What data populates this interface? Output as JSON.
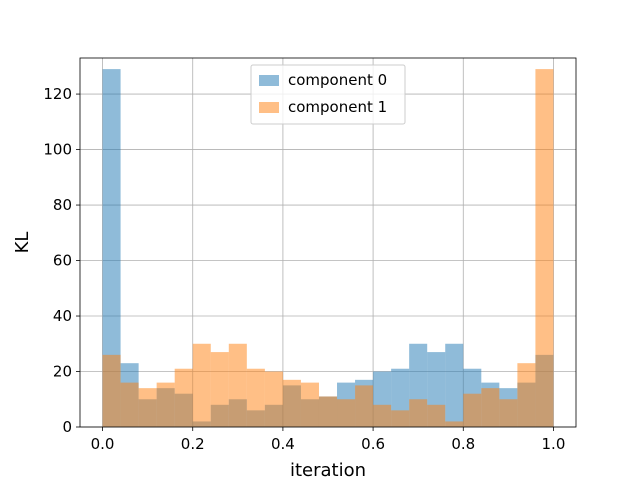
{
  "chart_data": {
    "type": "bar",
    "subtype": "overlaid-histogram",
    "title": "",
    "xlabel": "iteration",
    "ylabel": "KL",
    "xlim": [
      -0.05,
      1.05
    ],
    "ylim": [
      0,
      133
    ],
    "xticks": [
      0.0,
      0.2,
      0.4,
      0.6,
      0.8,
      1.0
    ],
    "xtick_labels": [
      "0.0",
      "0.2",
      "0.4",
      "0.6",
      "0.8",
      "1.0"
    ],
    "yticks": [
      0,
      20,
      40,
      60,
      80,
      100,
      120
    ],
    "ytick_labels": [
      "0",
      "20",
      "40",
      "60",
      "80",
      "100",
      "120"
    ],
    "grid": true,
    "legend_position": "top-center",
    "bin_edges": [
      0.0,
      0.04,
      0.08,
      0.12,
      0.16,
      0.2,
      0.24,
      0.28,
      0.32,
      0.36,
      0.4,
      0.44,
      0.48,
      0.52,
      0.56,
      0.6,
      0.64,
      0.68,
      0.72,
      0.76,
      0.8,
      0.84,
      0.88,
      0.92,
      0.96,
      1.0
    ],
    "series": [
      {
        "name": "component 0",
        "color": "#1f77b4",
        "alpha": 0.5,
        "values": [
          129,
          23,
          10,
          14,
          12,
          2,
          8,
          10,
          6,
          8,
          15,
          10,
          11,
          16,
          17,
          20,
          21,
          30,
          27,
          30,
          21,
          16,
          14,
          16,
          26
        ]
      },
      {
        "name": "component 1",
        "color": "#ff7f0e",
        "alpha": 0.5,
        "values": [
          26,
          16,
          14,
          16,
          21,
          30,
          27,
          30,
          21,
          20,
          17,
          16,
          11,
          10,
          15,
          8,
          6,
          10,
          8,
          2,
          12,
          14,
          10,
          23,
          129
        ]
      }
    ]
  }
}
